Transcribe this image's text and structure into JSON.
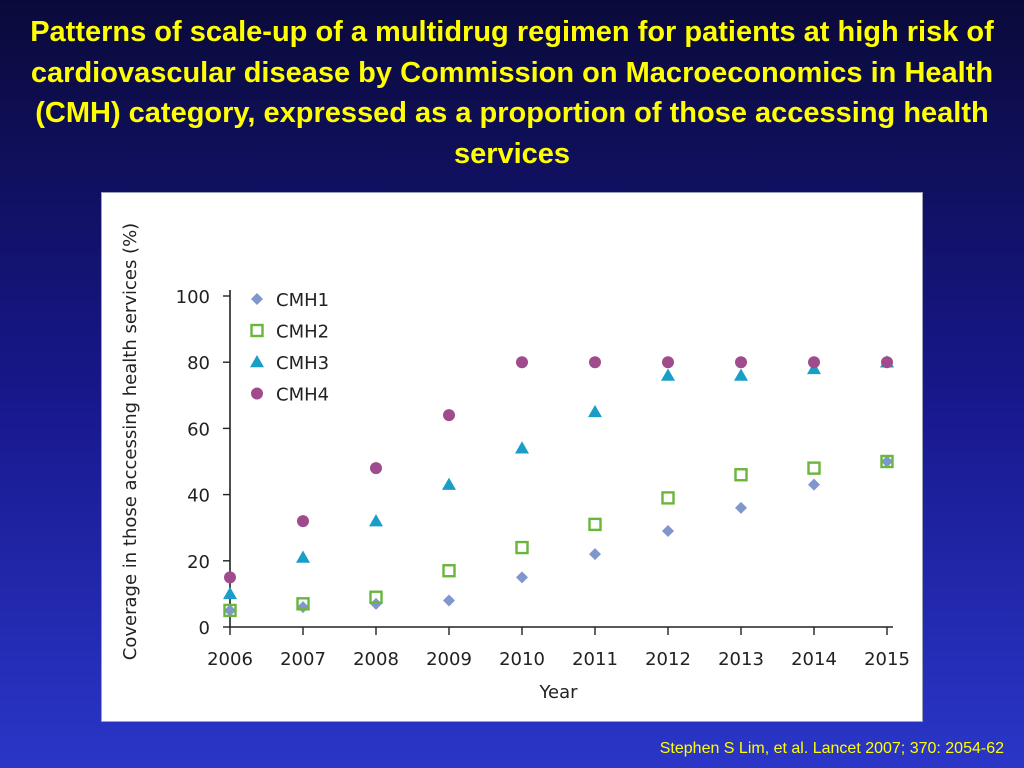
{
  "slide": {
    "title": "Patterns of scale-up of a multidrug regimen for patients at high risk of cardiovascular disease by Commission on Macroeconomics in Health (CMH) category, expressed as a proportion of those accessing health services",
    "citation": "Stephen S Lim, et al. Lancet 2007; 370: 2054-62"
  },
  "chart_data": {
    "type": "scatter",
    "title": "",
    "xlabel": "Year",
    "ylabel": "Coverage in those accessing health services (%)",
    "x": [
      2006,
      2007,
      2008,
      2009,
      2010,
      2011,
      2012,
      2013,
      2014,
      2015
    ],
    "x_tick_labels": [
      "2006",
      "2007",
      "2008",
      "2009",
      "2010",
      "2011",
      "2012",
      "2013",
      "2014",
      "2015"
    ],
    "y_ticks": [
      0,
      20,
      40,
      60,
      80,
      100
    ],
    "y_tick_labels": [
      "0",
      "20",
      "40",
      "60",
      "80",
      "100"
    ],
    "xlim": [
      2006,
      2015
    ],
    "ylim": [
      0,
      100
    ],
    "grid": false,
    "legend_position": "top-left",
    "series": [
      {
        "name": "CMH1",
        "marker": "diamond",
        "color": "#7f97cc",
        "values": [
          5,
          6,
          7,
          8,
          15,
          22,
          29,
          36,
          43,
          50
        ]
      },
      {
        "name": "CMH2",
        "marker": "square-open",
        "color": "#6ab53c",
        "values": [
          5,
          7,
          9,
          17,
          24,
          31,
          39,
          46,
          48,
          50
        ]
      },
      {
        "name": "CMH3",
        "marker": "triangle",
        "color": "#1a9ec9",
        "values": [
          10,
          21,
          32,
          43,
          54,
          65,
          76,
          76,
          78,
          80
        ]
      },
      {
        "name": "CMH4",
        "marker": "circle",
        "color": "#a04c8c",
        "values": [
          15,
          32,
          48,
          64,
          80,
          80,
          80,
          80,
          80,
          80
        ]
      }
    ]
  }
}
